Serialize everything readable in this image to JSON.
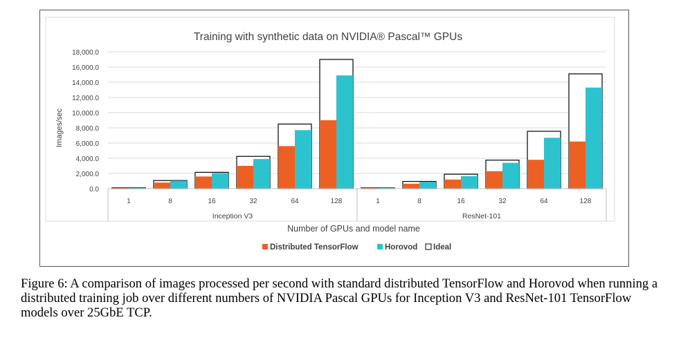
{
  "chart_data": {
    "type": "bar",
    "title": "Training with synthetic data on NVIDIA® Pascal™ GPUs",
    "xlabel": "Number of GPUs and model name",
    "ylabel": "Images/sec",
    "ylim": [
      0,
      18000
    ],
    "yticks": [
      "0.0",
      "2,000.0",
      "4,000.0",
      "6,000.0",
      "8,000.0",
      "10,000.0",
      "12,000.0",
      "14,000.0",
      "16,000.0",
      "18,000.0"
    ],
    "grid": true,
    "legend_position": "bottom",
    "groups": [
      {
        "name": "Inception V3",
        "categories": [
          "1",
          "8",
          "16",
          "32",
          "64",
          "128"
        ],
        "series": [
          {
            "name": "Distributed TensorFlow",
            "values": [
              130,
              800,
              1600,
              3000,
              5600,
              9000
            ]
          },
          {
            "name": "Horovod",
            "values": [
              130,
              1050,
              2050,
              3900,
              7700,
              14900
            ]
          },
          {
            "name": "Ideal",
            "values": [
              130,
              1070,
              2150,
              4250,
              8500,
              17000
            ]
          }
        ]
      },
      {
        "name": "ResNet-101",
        "categories": [
          "1",
          "8",
          "16",
          "32",
          "64",
          "128"
        ],
        "series": [
          {
            "name": "Distributed TensorFlow",
            "values": [
              110,
              650,
              1200,
              2300,
              3800,
              6200
            ]
          },
          {
            "name": "Horovod",
            "values": [
              110,
              900,
              1650,
              3400,
              6700,
              13300
            ]
          },
          {
            "name": "Ideal",
            "values": [
              110,
              950,
              1900,
              3750,
              7550,
              15100
            ]
          }
        ]
      }
    ],
    "colors": {
      "Distributed TensorFlow": "#ED6024",
      "Horovod": "#2CC3CF",
      "Ideal": "#FFFFFF"
    }
  },
  "caption": "Figure 6: A comparison of images processed per second with standard distributed TensorFlow and Horovod when running a distributed training job over different numbers of NVIDIA Pascal GPUs for Inception V3 and ResNet-101 TensorFlow models over 25GbE TCP."
}
